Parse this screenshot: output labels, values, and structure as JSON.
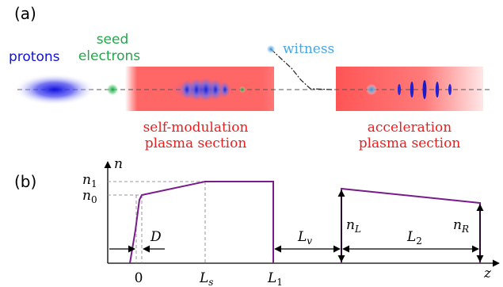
{
  "panel_a": {
    "label": "(a)",
    "protons": "protons",
    "seed_line1": "seed",
    "seed_line2": "electrons",
    "witness": "witness",
    "sm_line1": "self-modulation",
    "sm_line2": "plasma section",
    "acc_line1": "acceleration",
    "acc_line2": "plasma section"
  },
  "panel_b": {
    "label": "(b)",
    "axis_y": "n",
    "axis_x": "z",
    "tick_n1": "n",
    "tick_n1_sub": "1",
    "tick_n0": "n",
    "tick_n0_sub": "0",
    "tick_0": "0",
    "tick_Ls": "L",
    "tick_Ls_sub": "s",
    "tick_L1": "L",
    "tick_L1_sub": "1",
    "label_D": "D",
    "label_Lv": "L",
    "label_Lv_sub": "v",
    "label_nL": "n",
    "label_nL_sub": "L",
    "label_L2": "L",
    "label_L2_sub": "2",
    "label_nR": "n",
    "label_nR_sub": "R"
  },
  "colors": {
    "protons": "#0a0ad8",
    "seed": "#22a84a",
    "witness": "#4aa6e0",
    "plasma": "#ff5a5a",
    "plasma_text": "#ee1c1c",
    "density_profile": "#7a1b8a"
  }
}
